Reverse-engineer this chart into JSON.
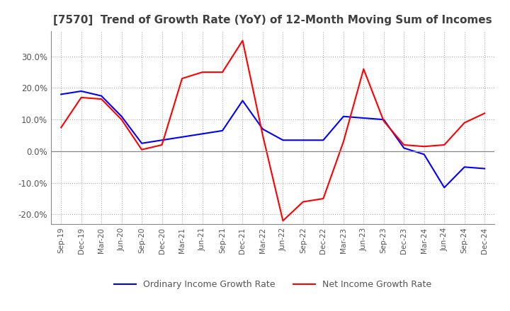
{
  "title": "[7570]  Trend of Growth Rate (YoY) of 12-Month Moving Sum of Incomes",
  "x_labels": [
    "Sep-19",
    "Dec-19",
    "Mar-20",
    "Jun-20",
    "Sep-20",
    "Dec-20",
    "Mar-21",
    "Jun-21",
    "Sep-21",
    "Dec-21",
    "Mar-22",
    "Jun-22",
    "Sep-22",
    "Dec-22",
    "Mar-23",
    "Jun-23",
    "Sep-23",
    "Dec-23",
    "Mar-24",
    "Jun-24",
    "Sep-24",
    "Dec-24"
  ],
  "ordinary_income": [
    18.0,
    19.0,
    17.5,
    11.0,
    2.5,
    3.5,
    4.5,
    5.5,
    6.5,
    16.0,
    7.0,
    3.5,
    3.5,
    3.5,
    11.0,
    10.5,
    10.0,
    1.0,
    -1.0,
    -11.5,
    -5.0,
    -5.5
  ],
  "net_income": [
    7.5,
    17.0,
    16.5,
    10.0,
    0.5,
    2.0,
    23.0,
    25.0,
    25.0,
    35.0,
    5.0,
    -22.0,
    -16.0,
    -15.0,
    3.0,
    26.0,
    9.5,
    2.0,
    1.5,
    2.0,
    9.0,
    12.0
  ],
  "ordinary_color": "#0000ff",
  "net_color": "#ff0000",
  "ylim": [
    -23,
    38
  ],
  "yticks": [
    -20,
    -10,
    0,
    10,
    20,
    30
  ],
  "background_color": "#ffffff",
  "grid_color": "#aaaaaa",
  "spine_color": "#888888",
  "title_color": "#404040",
  "tick_color": "#555555",
  "legend_labels": [
    "Ordinary Income Growth Rate",
    "Net Income Growth Rate"
  ]
}
